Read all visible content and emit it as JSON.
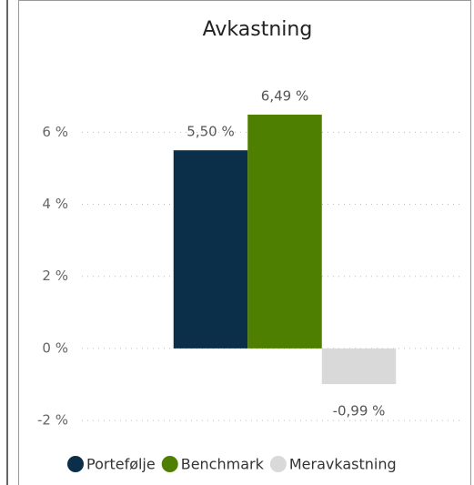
{
  "chart_data": {
    "type": "bar",
    "title": "Avkastning",
    "series": [
      {
        "name": "Portefølje",
        "color": "#0b2f49",
        "values": [
          5.5
        ],
        "value_labels": [
          "5,50 %"
        ]
      },
      {
        "name": "Benchmark",
        "color": "#4f7f00",
        "values": [
          6.49
        ],
        "value_labels": [
          "6,49 %"
        ]
      },
      {
        "name": "Meravkastning",
        "color": "#d9d9d9",
        "values": [
          -0.99
        ],
        "value_labels": [
          "-0,99 %"
        ]
      }
    ],
    "ylim": [
      -2.2,
      7.5
    ],
    "yticks": [
      {
        "value": -2,
        "label": "-2 %"
      },
      {
        "value": 0,
        "label": "0 %"
      },
      {
        "value": 2,
        "label": "2 %"
      },
      {
        "value": 4,
        "label": "4 %"
      },
      {
        "value": 6,
        "label": "6 %"
      }
    ],
    "grid": true,
    "legend": "bottom"
  }
}
